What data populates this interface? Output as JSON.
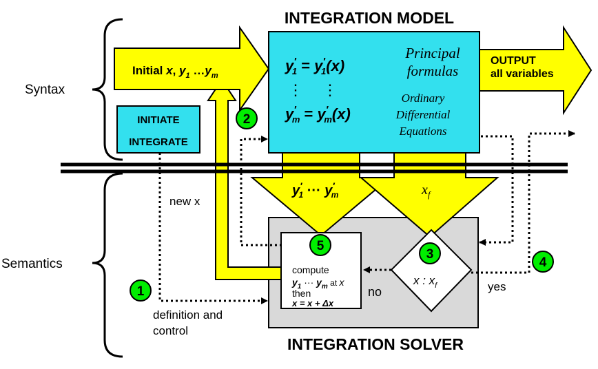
{
  "title_top": "INTEGRATION MODEL",
  "title_bottom": "INTEGRATION SOLVER",
  "section_syntax": "Syntax",
  "section_semantics": "Semantics",
  "input_arrow": {
    "prefix": "Initial ",
    "x": "x",
    "sep": ", ",
    "y": "y",
    "sub1": "1",
    "dots": " …",
    "ym": "y",
    "subm": "m"
  },
  "output_arrow": {
    "line1": "OUTPUT",
    "line2": "all variables"
  },
  "initiate_box": {
    "line1": "INITIATE",
    "line2": "INTEGRATE"
  },
  "model": {
    "principal": [
      "Principal",
      "formulas"
    ],
    "ode": [
      "Ordinary",
      "Differential",
      "Equations"
    ],
    "eq_y": "y",
    "eq_eq": " = ",
    "eq_x": "(x)",
    "sub1": "1",
    "subm": "m",
    "prime": "′",
    "vdots": "⋮"
  },
  "down_arrow_left": {
    "y": "y",
    "prime": "′",
    "sub1": "1",
    "dots": " ··· ",
    "subm": "m"
  },
  "down_arrow_right": {
    "x": "x",
    "sub": "f"
  },
  "solver": {
    "compute": "compute",
    "at": " at ",
    "x": "x",
    "then": "then",
    "assign": "x = x + Δx",
    "y": "y",
    "sub1": "1",
    "dots": " ··· ",
    "subm": "m",
    "diamond": "x : x",
    "diamond_sub": "f"
  },
  "labels": {
    "new_x": "new x",
    "no": "no",
    "yes": "yes",
    "definition": [
      "definition and",
      "control"
    ]
  },
  "markers": [
    "1",
    "2",
    "3",
    "4",
    "5"
  ],
  "colors": {
    "yellow": "#ffff00",
    "cyan": "#33e0ee",
    "gray": "#d9d9d9",
    "green": "#00ee00",
    "black": "#000000"
  }
}
